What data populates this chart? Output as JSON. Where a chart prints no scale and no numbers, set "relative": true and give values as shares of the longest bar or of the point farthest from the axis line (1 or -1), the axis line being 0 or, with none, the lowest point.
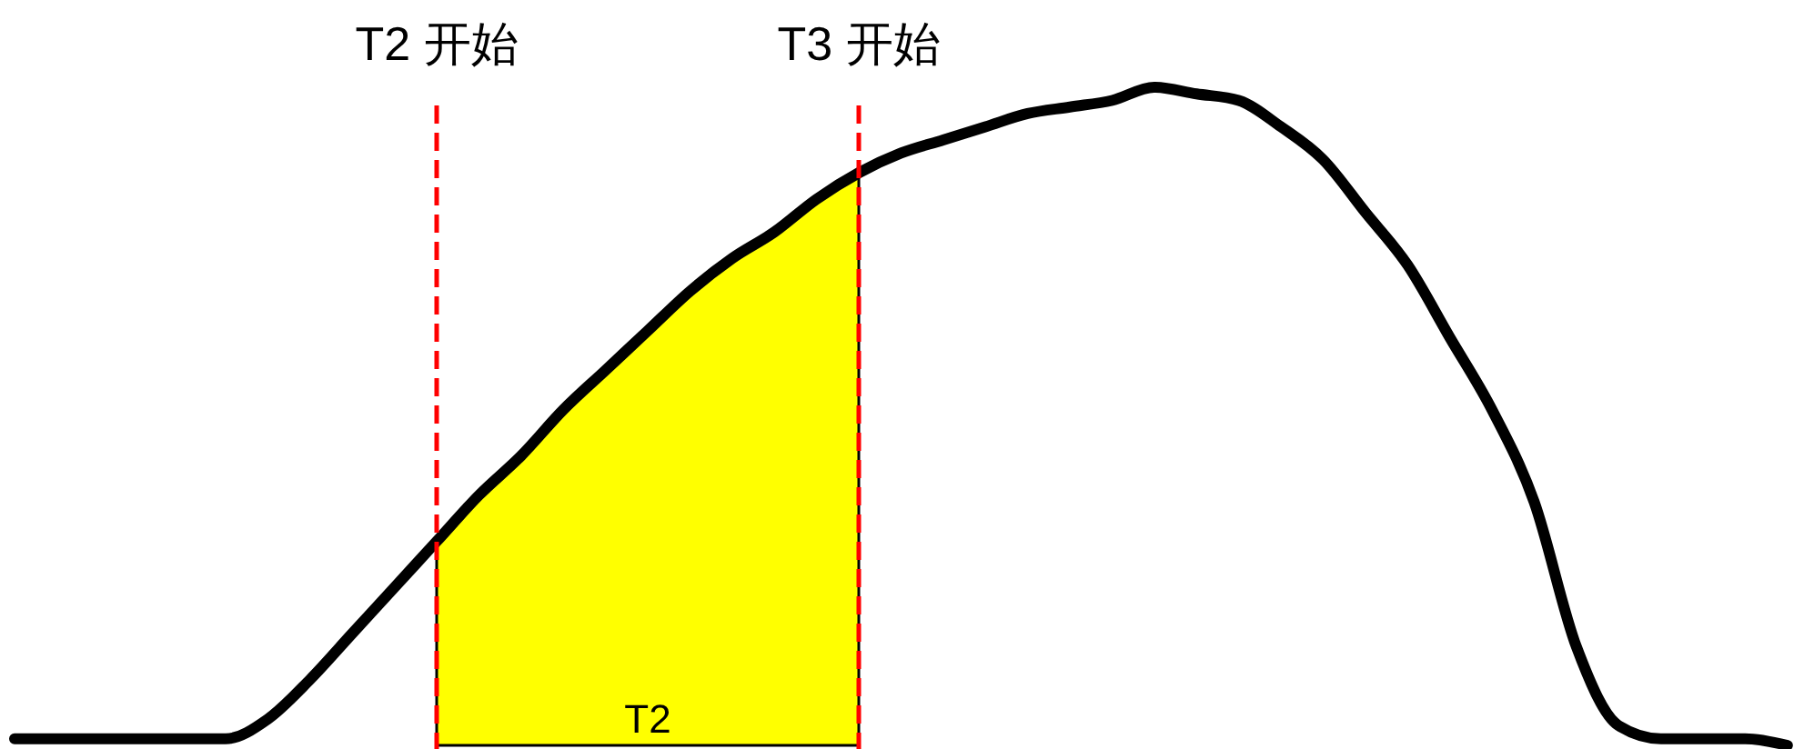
{
  "chart_data": {
    "type": "line",
    "relative": true,
    "categories": [
      null,
      null,
      null,
      null,
      null,
      null,
      null,
      null,
      null,
      null,
      null,
      null,
      null,
      null,
      null,
      null,
      null,
      null,
      null,
      null,
      null,
      null,
      null,
      null,
      null,
      null,
      null,
      null,
      null,
      null,
      null,
      null,
      null,
      null,
      null,
      null,
      null,
      null,
      null,
      null,
      null,
      null,
      null
    ],
    "series": [
      {
        "type": "area",
        "name": "T2",
        "color": "#ffff00",
        "values": [
          null,
          null,
          null,
          null,
          null,
          null,
          null,
          null,
          null,
          null,
          0.31,
          0.38,
          0.44,
          0.51,
          0.57,
          0.63,
          0.69,
          0.74,
          0.78,
          0.83,
          0.87,
          null,
          null,
          null,
          null,
          null,
          null,
          null,
          null,
          null,
          null,
          null,
          null,
          null,
          null,
          null,
          null,
          null,
          null,
          null,
          null,
          null,
          null
        ]
      },
      {
        "color": "#000000",
        "values": [
          0.01,
          0.01,
          0.01,
          0.01,
          0.01,
          0.01,
          0.04,
          0.1,
          0.17,
          0.24,
          0.31,
          0.38,
          0.44,
          0.51,
          0.57,
          0.63,
          0.69,
          0.74,
          0.78,
          0.83,
          0.87,
          0.9,
          0.92,
          0.94,
          0.96,
          0.97,
          0.98,
          1.0,
          0.99,
          0.98,
          0.94,
          0.89,
          0.81,
          0.73,
          0.62,
          0.51,
          0.37,
          0.15,
          0.03,
          0.01,
          0.01,
          0.01,
          0.0
        ]
      }
    ],
    "annotations": [
      "T2 开始",
      "T3 开始"
    ]
  }
}
